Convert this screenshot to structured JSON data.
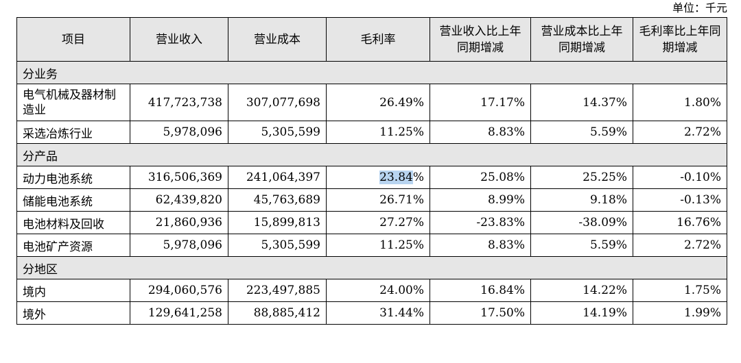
{
  "unit_label": "单位：千元",
  "headers": [
    "项目",
    "营业收入",
    "营业成本",
    "毛利率",
    "营业收入比上年同期增减",
    "营业成本比上年同期增减",
    "毛利率比上年同期增减"
  ],
  "sections": [
    {
      "title": "分业务",
      "rows": [
        {
          "label": "电气机械及器材制造业",
          "revenue": "417,723,738",
          "cost": "307,077,698",
          "margin": "26.49%",
          "rev_change": "17.17%",
          "cost_change": "14.37%",
          "margin_change": "1.80%"
        },
        {
          "label": "采选冶炼行业",
          "revenue": "5,978,096",
          "cost": "5,305,599",
          "margin": "11.25%",
          "rev_change": "8.83%",
          "cost_change": "5.59%",
          "margin_change": "2.72%"
        }
      ]
    },
    {
      "title": "分产品",
      "rows": [
        {
          "label": "动力电池系统",
          "revenue": "316,506,369",
          "cost": "241,064,397",
          "margin": "23.84%",
          "rev_change": "25.08%",
          "cost_change": "25.25%",
          "margin_change": "-0.10%"
        },
        {
          "label": "储能电池系统",
          "revenue": "62,439,820",
          "cost": "45,763,689",
          "margin": "26.71%",
          "rev_change": "8.99%",
          "cost_change": "9.18%",
          "margin_change": "-0.13%"
        },
        {
          "label": "电池材料及回收",
          "revenue": "21,860,936",
          "cost": "15,899,813",
          "margin": "27.27%",
          "rev_change": "-23.83%",
          "cost_change": "-38.09%",
          "margin_change": "16.76%"
        },
        {
          "label": "电池矿产资源",
          "revenue": "5,978,096",
          "cost": "5,305,599",
          "margin": "11.25%",
          "rev_change": "8.83%",
          "cost_change": "5.59%",
          "margin_change": "2.72%"
        }
      ]
    },
    {
      "title": "分地区",
      "rows": [
        {
          "label": "境内",
          "revenue": "294,060,576",
          "cost": "223,497,885",
          "margin": "24.00%",
          "rev_change": "16.84%",
          "cost_change": "14.22%",
          "margin_change": "1.75%"
        },
        {
          "label": "境外",
          "revenue": "129,641,258",
          "cost": "88,885,412",
          "margin": "31.44%",
          "rev_change": "17.50%",
          "cost_change": "14.19%",
          "margin_change": "1.99%"
        }
      ]
    }
  ],
  "highlight": {
    "text": "23.84",
    "color": "#b8d4f0"
  }
}
